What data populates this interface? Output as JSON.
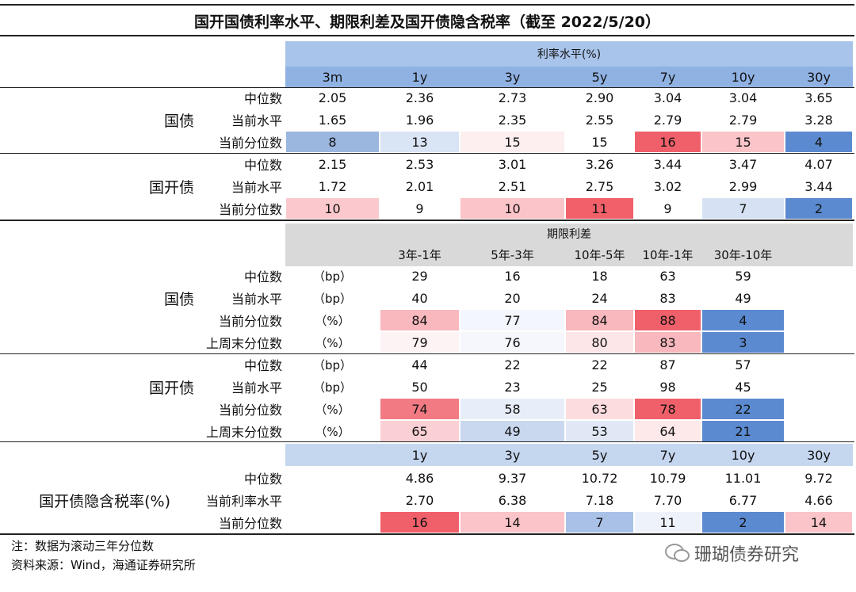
{
  "title": "国开国债利率水平、期限利差及国开债隐含税率（截至 2022/5/20）",
  "section1": {
    "header": "利率水平(%)",
    "columns": [
      "3m",
      "1y",
      "3y",
      "5y",
      "7y",
      "10y",
      "30y"
    ],
    "groups": [
      {
        "name": "国债",
        "rows": [
          {
            "label": "中位数",
            "values": [
              "2.05",
              "2.36",
              "2.73",
              "2.90",
              "3.04",
              "3.04",
              "3.65"
            ]
          },
          {
            "label": "当前水平",
            "values": [
              "1.65",
              "1.96",
              "2.35",
              "2.55",
              "2.79",
              "2.79",
              "3.28"
            ]
          },
          {
            "label": "当前分位数",
            "values": [
              "8",
              "13",
              "15",
              "15",
              "16",
              "15",
              "4"
            ],
            "colors": [
              "#9bb7e0",
              "#d9e4f5",
              "#fdeef0",
              "#ffffff",
              "#f0606a",
              "#fbc4c8",
              "#5b8ad0"
            ]
          }
        ]
      },
      {
        "name": "国开债",
        "rows": [
          {
            "label": "中位数",
            "values": [
              "2.15",
              "2.53",
              "3.01",
              "3.26",
              "3.44",
              "3.47",
              "4.07"
            ]
          },
          {
            "label": "当前水平",
            "values": [
              "1.72",
              "2.01",
              "2.51",
              "2.75",
              "3.02",
              "2.99",
              "3.44"
            ]
          },
          {
            "label": "当前分位数",
            "values": [
              "10",
              "9",
              "10",
              "11",
              "9",
              "7",
              "2"
            ],
            "colors": [
              "#fbc9cd",
              "#ffffff",
              "#fbc4c8",
              "#f2606a",
              "#ffffff",
              "#d6e2f4",
              "#5b8ad0"
            ]
          }
        ]
      }
    ]
  },
  "section2": {
    "header": "期限利差",
    "columns": [
      "3年-1年",
      "5年-3年",
      "10年-5年",
      "10年-1年",
      "30年-10年"
    ],
    "groups": [
      {
        "name": "国债",
        "rows": [
          {
            "label": "中位数",
            "unit": "（bp）",
            "values": [
              "29",
              "16",
              "18",
              "63",
              "59"
            ]
          },
          {
            "label": "当前水平",
            "unit": "（bp）",
            "values": [
              "40",
              "20",
              "24",
              "83",
              "49"
            ]
          },
          {
            "label": "当前分位数",
            "unit": "（%）",
            "values": [
              "84",
              "77",
              "84",
              "88",
              "4"
            ],
            "colors": [
              "#f8b8bd",
              "#f3f6fc",
              "#f8b8bd",
              "#f0606a",
              "#5b8ad0"
            ]
          },
          {
            "label": "上周末分位数",
            "unit": "（%）",
            "values": [
              "79",
              "76",
              "80",
              "83",
              "3"
            ],
            "colors": [
              "#fdf3f4",
              "#f5f7fc",
              "#fce6e8",
              "#f8b8bd",
              "#5b8ad0"
            ]
          }
        ]
      },
      {
        "name": "国开债",
        "rows": [
          {
            "label": "中位数",
            "unit": "（bp）",
            "values": [
              "44",
              "22",
              "22",
              "87",
              "57"
            ]
          },
          {
            "label": "当前水平",
            "unit": "（bp）",
            "values": [
              "50",
              "23",
              "25",
              "98",
              "45"
            ]
          },
          {
            "label": "当前分位数",
            "unit": "（%）",
            "values": [
              "74",
              "58",
              "63",
              "78",
              "22"
            ],
            "colors": [
              "#f27a82",
              "#e8eef9",
              "#fcdcdf",
              "#f0606a",
              "#5b8ad0"
            ]
          },
          {
            "label": "上周末分位数",
            "unit": "（%）",
            "values": [
              "65",
              "49",
              "53",
              "64",
              "21"
            ],
            "colors": [
              "#fbd0d4",
              "#c9d7ef",
              "#e0e8f6",
              "#fde8ea",
              "#5b8ad0"
            ]
          }
        ]
      }
    ]
  },
  "section3": {
    "name": "国开债隐含税率(%)",
    "columns": [
      "1y",
      "3y",
      "5y",
      "7y",
      "10y",
      "30y"
    ],
    "rows": [
      {
        "label": "中位数",
        "values": [
          "4.86",
          "9.37",
          "10.72",
          "10.79",
          "11.01",
          "9.72"
        ]
      },
      {
        "label": "当前利率水平",
        "values": [
          "2.70",
          "6.38",
          "7.18",
          "7.70",
          "6.77",
          "4.66"
        ]
      },
      {
        "label": "当前分位数",
        "values": [
          "16",
          "14",
          "7",
          "11",
          "2",
          "14"
        ],
        "colors": [
          "#f0606a",
          "#fbc4c8",
          "#a9c1e6",
          "#eef2fa",
          "#5b8ad0",
          "#fbc4c8"
        ]
      }
    ]
  },
  "notes": [
    "注：数据为滚动三年分位数",
    "资料来源：Wind，海通证券研究所"
  ],
  "watermark": "珊瑚债券研究"
}
